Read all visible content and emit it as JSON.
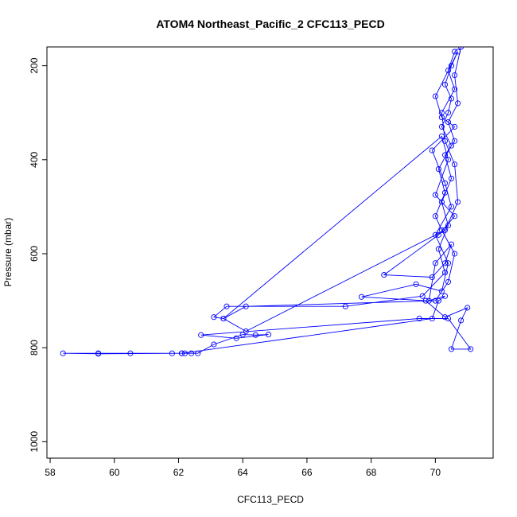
{
  "chart_data": {
    "type": "line",
    "title": "ATOM4 Northeast_Pacific_2 CFC113_PECD",
    "xlabel": "CFC113_PECD",
    "ylabel": "Pressure (mbar)",
    "xlim": [
      57.9,
      71.8
    ],
    "ylim": [
      1035,
      160
    ],
    "y_reversed": true,
    "grid": false,
    "legend": "none",
    "marker": "open-circle",
    "x_ticks": [
      58,
      60,
      62,
      64,
      66,
      68,
      70
    ],
    "y_ticks": [
      200,
      400,
      600,
      800,
      1000
    ],
    "series": [
      {
        "color": "#0000ff",
        "points": [
          [
            70.8,
            160
          ],
          [
            70.6,
            220
          ],
          [
            70.7,
            280
          ],
          [
            70.4,
            320
          ],
          [
            70.6,
            360
          ],
          [
            70.3,
            390
          ],
          [
            70.5,
            440
          ],
          [
            70.2,
            490
          ],
          [
            70.4,
            540
          ],
          [
            70.1,
            590
          ],
          [
            70.3,
            640
          ],
          [
            69.6,
            690
          ],
          [
            67.2,
            712
          ],
          [
            63.5,
            712
          ],
          [
            63.1,
            735
          ],
          [
            63.4,
            738
          ],
          [
            64.1,
            712
          ],
          [
            70.0,
            700
          ],
          [
            70.4,
            660
          ],
          [
            70.6,
            600
          ],
          [
            70.2,
            550
          ],
          [
            70.0,
            520
          ],
          [
            70.3,
            470
          ],
          [
            70.1,
            420
          ],
          [
            70.5,
            370
          ],
          [
            70.2,
            330
          ],
          [
            70.4,
            300
          ],
          [
            70.5,
            270
          ],
          [
            70.3,
            240
          ],
          [
            70.5,
            200
          ],
          [
            70.7,
            170
          ],
          [
            70.0,
            265
          ],
          [
            70.2,
            310
          ],
          [
            70.6,
            330
          ],
          [
            69.9,
            380
          ],
          [
            70.3,
            450
          ],
          [
            70.5,
            500
          ],
          [
            70.0,
            560
          ],
          [
            70.4,
            620
          ],
          [
            70.2,
            680
          ],
          [
            69.4,
            665
          ],
          [
            67.7,
            692
          ],
          [
            69.7,
            700
          ],
          [
            70.3,
            735
          ],
          [
            71.0,
            715
          ],
          [
            70.8,
            742
          ],
          [
            70.5,
            803
          ],
          [
            71.1,
            803
          ],
          [
            70.4,
            738
          ],
          [
            69.5,
            738
          ],
          [
            62.7,
            773
          ],
          [
            63.8,
            780
          ],
          [
            64.8,
            772
          ],
          [
            64.4,
            773
          ],
          [
            64.0,
            772
          ],
          [
            63.1,
            793
          ],
          [
            62.6,
            812
          ],
          [
            62.4,
            812
          ],
          [
            62.2,
            812
          ],
          [
            62.1,
            812
          ],
          [
            61.8,
            812
          ],
          [
            60.5,
            812
          ],
          [
            59.5,
            812
          ],
          [
            58.4,
            812
          ],
          [
            59.5,
            813
          ],
          [
            62.1,
            812
          ],
          [
            69.9,
            738
          ],
          [
            70.1,
            700
          ],
          [
            70.3,
            690
          ],
          [
            69.8,
            700
          ],
          [
            70.0,
            620
          ],
          [
            70.5,
            580
          ],
          [
            70.3,
            620
          ],
          [
            69.9,
            650
          ],
          [
            68.4,
            645
          ],
          [
            70.1,
            560
          ],
          [
            70.6,
            520
          ],
          [
            70.0,
            475
          ],
          [
            70.4,
            400
          ],
          [
            70.2,
            350
          ],
          [
            63.4,
            738
          ],
          [
            64.1,
            765
          ],
          [
            70.3,
            550
          ],
          [
            70.7,
            490
          ],
          [
            70.6,
            410
          ],
          [
            70.3,
            360
          ],
          [
            70.2,
            300
          ],
          [
            70.6,
            250
          ],
          [
            70.4,
            210
          ],
          [
            70.6,
            170
          ]
        ]
      }
    ]
  }
}
